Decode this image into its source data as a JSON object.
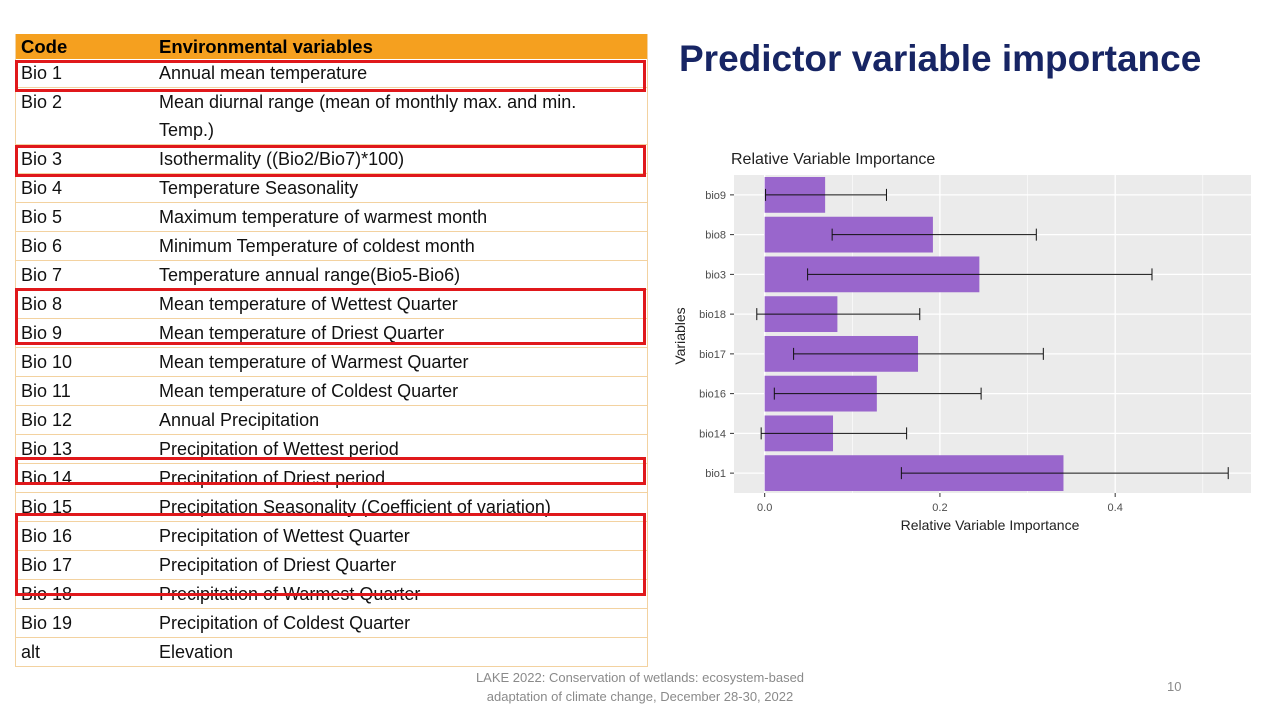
{
  "slide": {
    "title": "Predictor variable importance",
    "footer_line1": "LAKE 2022: Conservation of wetlands: ecosystem-based",
    "footer_line2": "adaptation of climate change, December 28-30, 2022",
    "page_number": "10"
  },
  "table": {
    "headers": [
      "Code",
      "Environmental variables"
    ],
    "rows": [
      {
        "code": "Bio 1",
        "desc": "Annual mean temperature"
      },
      {
        "code": "Bio 2",
        "desc": "Mean diurnal range (mean of monthly max. and min.",
        "desc2": "Temp.)"
      },
      {
        "code": "Bio 3",
        "desc": "Isothermality ((Bio2/Bio7)*100)"
      },
      {
        "code": "Bio 4",
        "desc": "Temperature Seasonality"
      },
      {
        "code": "Bio 5",
        "desc": "Maximum temperature of warmest month"
      },
      {
        "code": "Bio 6",
        "desc": "Minimum Temperature of coldest month"
      },
      {
        "code": "Bio 7",
        "desc": "Temperature annual range(Bio5-Bio6)"
      },
      {
        "code": "Bio 8",
        "desc": "Mean temperature of Wettest Quarter"
      },
      {
        "code": "Bio 9",
        "desc": "Mean temperature of Driest Quarter"
      },
      {
        "code": "Bio 10",
        "desc": "Mean temperature of Warmest Quarter"
      },
      {
        "code": "Bio 11",
        "desc": "Mean temperature of Coldest Quarter"
      },
      {
        "code": "Bio 12",
        "desc": "Annual Precipitation"
      },
      {
        "code": "Bio 13",
        "desc": "Precipitation of Wettest period"
      },
      {
        "code": "Bio 14",
        "desc": "Precipitation of Driest period"
      },
      {
        "code": "Bio 15",
        "desc": "Precipitation Seasonality (Coefficient of variation)"
      },
      {
        "code": "Bio 16",
        "desc": "Precipitation of Wettest Quarter"
      },
      {
        "code": "Bio 17",
        "desc": "Precipitation of Driest Quarter"
      },
      {
        "code": "Bio 18",
        "desc": "Precipitation of Warmest Quarter"
      },
      {
        "code": "Bio 19",
        "desc": "Precipitation of Coldest Quarter"
      },
      {
        "code": "alt",
        "desc": "Elevation"
      }
    ]
  },
  "colors": {
    "header_bg": "#f5a01f",
    "highlight_border": "#e0181b",
    "title": "#172564",
    "bar": "#9966cc",
    "panel": "#ebebeb"
  },
  "chart_data": {
    "type": "bar",
    "orientation": "horizontal",
    "title": "Relative Variable Importance",
    "xlabel": "Relative Variable Importance",
    "ylabel": "Variables",
    "xlim": [
      -0.035,
      0.555
    ],
    "xticks": [
      0.0,
      0.2,
      0.4
    ],
    "xtick_labels": [
      "0.0",
      "0.2",
      "0.4"
    ],
    "categories": [
      "bio9",
      "bio8",
      "bio3",
      "bio18",
      "bio17",
      "bio16",
      "bio14",
      "bio1"
    ],
    "values": [
      0.069,
      0.192,
      0.245,
      0.083,
      0.175,
      0.128,
      0.078,
      0.341
    ],
    "error_low": [
      0.001,
      0.077,
      0.049,
      -0.009,
      0.033,
      0.011,
      -0.004,
      0.156
    ],
    "error_high": [
      0.139,
      0.31,
      0.442,
      0.177,
      0.318,
      0.247,
      0.162,
      0.529
    ]
  }
}
